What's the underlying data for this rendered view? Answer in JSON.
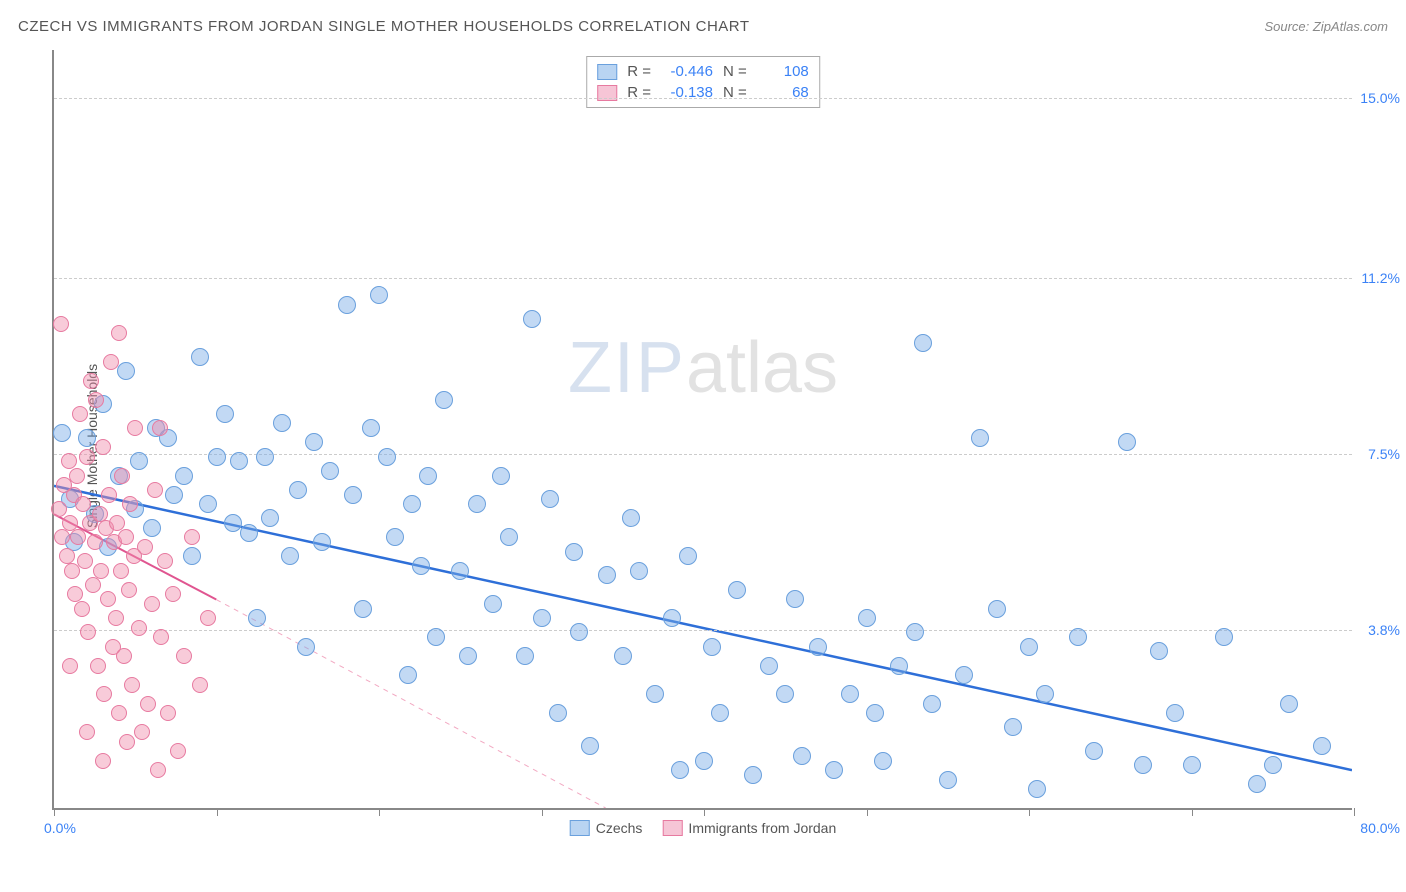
{
  "title": "CZECH VS IMMIGRANTS FROM JORDAN SINGLE MOTHER HOUSEHOLDS CORRELATION CHART",
  "source": "Source: ZipAtlas.com",
  "y_axis_label": "Single Mother Households",
  "watermark_a": "ZIP",
  "watermark_b": "atlas",
  "chart": {
    "type": "scatter",
    "xlim": [
      0,
      80
    ],
    "ylim": [
      0,
      16
    ],
    "x_label_min": "0.0%",
    "x_label_max": "80.0%",
    "x_ticks": [
      0,
      10,
      20,
      30,
      40,
      50,
      60,
      70,
      80
    ],
    "y_gridlines": [
      {
        "value": 3.8,
        "label": "3.8%"
      },
      {
        "value": 7.5,
        "label": "7.5%"
      },
      {
        "value": 11.2,
        "label": "11.2%"
      },
      {
        "value": 15.0,
        "label": "15.0%"
      }
    ],
    "background_color": "#ffffff",
    "grid_color": "#cccccc",
    "axis_color": "#888888",
    "tick_label_color": "#3b82f6"
  },
  "series": [
    {
      "name": "Czechs",
      "color_fill": "rgba(120,170,230,0.45)",
      "color_stroke": "#6aa0dd",
      "swatch_fill": "#b9d4f2",
      "swatch_border": "#6aa0dd",
      "trend": {
        "x1": 0,
        "y1": 6.8,
        "x2": 80,
        "y2": 0.8,
        "color": "#2e6fd8",
        "width": 2.5,
        "dash": "none"
      },
      "stats": {
        "R": "-0.446",
        "N": "108"
      },
      "radius": 9,
      "points": [
        [
          0.5,
          7.9
        ],
        [
          1,
          6.5
        ],
        [
          1.2,
          5.6
        ],
        [
          2,
          7.8
        ],
        [
          2.5,
          6.2
        ],
        [
          3,
          8.5
        ],
        [
          3.3,
          5.5
        ],
        [
          4,
          7.0
        ],
        [
          4.4,
          9.2
        ],
        [
          5,
          6.3
        ],
        [
          5.2,
          7.3
        ],
        [
          6,
          5.9
        ],
        [
          6.3,
          8.0
        ],
        [
          7,
          7.8
        ],
        [
          7.4,
          6.6
        ],
        [
          8,
          7.0
        ],
        [
          8.5,
          5.3
        ],
        [
          9,
          9.5
        ],
        [
          9.5,
          6.4
        ],
        [
          10,
          7.4
        ],
        [
          10.5,
          8.3
        ],
        [
          11,
          6.0
        ],
        [
          11.4,
          7.3
        ],
        [
          12,
          5.8
        ],
        [
          12.5,
          4.0
        ],
        [
          13,
          7.4
        ],
        [
          13.3,
          6.1
        ],
        [
          14,
          8.1
        ],
        [
          14.5,
          5.3
        ],
        [
          15,
          6.7
        ],
        [
          15.5,
          3.4
        ],
        [
          16,
          7.7
        ],
        [
          16.5,
          5.6
        ],
        [
          17,
          7.1
        ],
        [
          18,
          10.6
        ],
        [
          18.4,
          6.6
        ],
        [
          19,
          4.2
        ],
        [
          19.5,
          8.0
        ],
        [
          20,
          10.8
        ],
        [
          20.5,
          7.4
        ],
        [
          21,
          5.7
        ],
        [
          21.8,
          2.8
        ],
        [
          22,
          6.4
        ],
        [
          22.6,
          5.1
        ],
        [
          23,
          7.0
        ],
        [
          23.5,
          3.6
        ],
        [
          24,
          8.6
        ],
        [
          25,
          5.0
        ],
        [
          25.5,
          3.2
        ],
        [
          26,
          6.4
        ],
        [
          27,
          4.3
        ],
        [
          27.5,
          7.0
        ],
        [
          28,
          5.7
        ],
        [
          29,
          3.2
        ],
        [
          29.4,
          10.3
        ],
        [
          30,
          4.0
        ],
        [
          30.5,
          6.5
        ],
        [
          31,
          2.0
        ],
        [
          32,
          5.4
        ],
        [
          32.3,
          3.7
        ],
        [
          33,
          1.3
        ],
        [
          34,
          4.9
        ],
        [
          35,
          3.2
        ],
        [
          35.5,
          6.1
        ],
        [
          36,
          5.0
        ],
        [
          37,
          2.4
        ],
        [
          38,
          4.0
        ],
        [
          38.5,
          0.8
        ],
        [
          39,
          5.3
        ],
        [
          40,
          1.0
        ],
        [
          40.5,
          3.4
        ],
        [
          41,
          2.0
        ],
        [
          42,
          4.6
        ],
        [
          43,
          0.7
        ],
        [
          44,
          3.0
        ],
        [
          45,
          2.4
        ],
        [
          45.6,
          4.4
        ],
        [
          46,
          1.1
        ],
        [
          47,
          3.4
        ],
        [
          48,
          0.8
        ],
        [
          49,
          2.4
        ],
        [
          50,
          4.0
        ],
        [
          50.5,
          2.0
        ],
        [
          51,
          1.0
        ],
        [
          52,
          3.0
        ],
        [
          53,
          3.7
        ],
        [
          53.5,
          9.8
        ],
        [
          54,
          2.2
        ],
        [
          55,
          0.6
        ],
        [
          56,
          2.8
        ],
        [
          57,
          7.8
        ],
        [
          58,
          4.2
        ],
        [
          59,
          1.7
        ],
        [
          60,
          3.4
        ],
        [
          60.5,
          0.4
        ],
        [
          61,
          2.4
        ],
        [
          63,
          3.6
        ],
        [
          64,
          1.2
        ],
        [
          66,
          7.7
        ],
        [
          67,
          0.9
        ],
        [
          68,
          3.3
        ],
        [
          69,
          2.0
        ],
        [
          70,
          0.9
        ],
        [
          72,
          3.6
        ],
        [
          74,
          0.5
        ],
        [
          75,
          0.9
        ],
        [
          76,
          2.2
        ],
        [
          78,
          1.3
        ]
      ]
    },
    {
      "name": "Immigrants from Jordan",
      "color_fill": "rgba(240,140,170,0.45)",
      "color_stroke": "#e77aa0",
      "swatch_fill": "#f6c5d6",
      "swatch_border": "#e77aa0",
      "trend": {
        "x1": 0,
        "y1": 6.2,
        "x2": 10,
        "y2": 4.4,
        "color": "#e05590",
        "width": 2,
        "dash": "none"
      },
      "trend_ext": {
        "x1": 10,
        "y1": 4.4,
        "x2": 34,
        "y2": 0.0,
        "color": "#f2a9c2",
        "width": 1,
        "dash": "5,5"
      },
      "stats": {
        "R": "-0.138",
        "N": "68"
      },
      "radius": 8,
      "points": [
        [
          0.3,
          6.3
        ],
        [
          0.5,
          5.7
        ],
        [
          0.6,
          6.8
        ],
        [
          0.8,
          5.3
        ],
        [
          0.9,
          7.3
        ],
        [
          1.0,
          6.0
        ],
        [
          1.1,
          5.0
        ],
        [
          1.2,
          6.6
        ],
        [
          1.3,
          4.5
        ],
        [
          1.4,
          7.0
        ],
        [
          1.5,
          5.7
        ],
        [
          1.6,
          8.3
        ],
        [
          1.7,
          4.2
        ],
        [
          1.8,
          6.4
        ],
        [
          1.9,
          5.2
        ],
        [
          2.0,
          7.4
        ],
        [
          2.1,
          3.7
        ],
        [
          2.2,
          6.0
        ],
        [
          2.3,
          9.0
        ],
        [
          2.4,
          4.7
        ],
        [
          2.5,
          5.6
        ],
        [
          2.6,
          8.6
        ],
        [
          2.7,
          3.0
        ],
        [
          2.8,
          6.2
        ],
        [
          2.9,
          5.0
        ],
        [
          3.0,
          7.6
        ],
        [
          3.1,
          2.4
        ],
        [
          3.2,
          5.9
        ],
        [
          3.3,
          4.4
        ],
        [
          3.4,
          6.6
        ],
        [
          3.5,
          9.4
        ],
        [
          3.6,
          3.4
        ],
        [
          3.7,
          5.6
        ],
        [
          3.8,
          4.0
        ],
        [
          3.9,
          6.0
        ],
        [
          4.0,
          2.0
        ],
        [
          4.1,
          5.0
        ],
        [
          4.2,
          7.0
        ],
        [
          4.3,
          3.2
        ],
        [
          4.4,
          5.7
        ],
        [
          4.5,
          1.4
        ],
        [
          4.6,
          4.6
        ],
        [
          4.7,
          6.4
        ],
        [
          4.8,
          2.6
        ],
        [
          4.9,
          5.3
        ],
        [
          5.0,
          8.0
        ],
        [
          5.2,
          3.8
        ],
        [
          5.4,
          1.6
        ],
        [
          5.6,
          5.5
        ],
        [
          5.8,
          2.2
        ],
        [
          6.0,
          4.3
        ],
        [
          6.2,
          6.7
        ],
        [
          6.4,
          0.8
        ],
        [
          6.6,
          3.6
        ],
        [
          6.8,
          5.2
        ],
        [
          7.0,
          2.0
        ],
        [
          7.3,
          4.5
        ],
        [
          7.6,
          1.2
        ],
        [
          8.0,
          3.2
        ],
        [
          8.5,
          5.7
        ],
        [
          9.0,
          2.6
        ],
        [
          9.5,
          4.0
        ],
        [
          0.4,
          10.2
        ],
        [
          4.0,
          10.0
        ],
        [
          2.0,
          1.6
        ],
        [
          3.0,
          1.0
        ],
        [
          6.5,
          8.0
        ],
        [
          1.0,
          3.0
        ]
      ]
    }
  ],
  "bottom_legend": [
    {
      "label": "Czechs"
    },
    {
      "label": "Immigrants from Jordan"
    }
  ],
  "stats_labels": {
    "R": "R =",
    "N": "N ="
  }
}
